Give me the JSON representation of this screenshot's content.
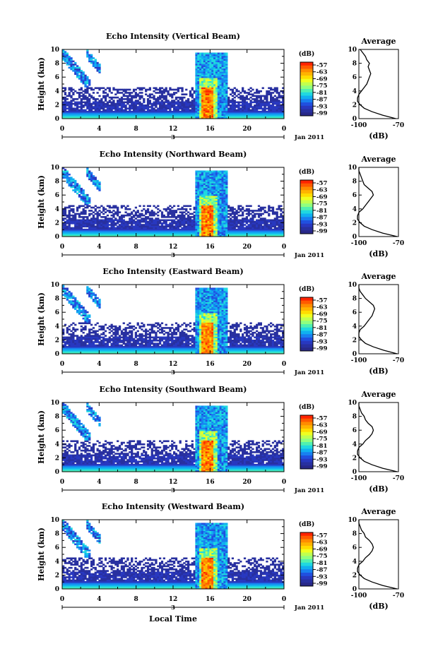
{
  "figure": {
    "xlabel": "Local Time",
    "date_label": "Jan 2011",
    "day_label": "3"
  },
  "colorbar": {
    "unit": "(dB)",
    "tick_labels": [
      "-57",
      "-63",
      "-69",
      "-75",
      "-81",
      "-87",
      "-93",
      "-99"
    ],
    "colors": [
      "#ff2400",
      "#ff5a00",
      "#ff8c00",
      "#ffb400",
      "#ffdc00",
      "#f0ff20",
      "#c0ff50",
      "#90ff80",
      "#50f0b0",
      "#20d8e0",
      "#10b0f0",
      "#1880f0",
      "#2050e0",
      "#2838c0",
      "#2830a0",
      "#282888"
    ]
  },
  "chart_data": [
    {
      "type": "heatmap",
      "title": "Echo Intensity (Vertical Beam)",
      "ylabel": "Height (km)",
      "x_ticks": [
        "0",
        "4",
        "8",
        "12",
        "16",
        "20",
        "0"
      ],
      "y_ticks": [
        "0",
        "2",
        "4",
        "6",
        "8",
        "10"
      ],
      "xlim": [
        0,
        24
      ],
      "ylim": [
        0,
        10
      ],
      "clim": [
        -99,
        -57
      ],
      "profile": {
        "title": "Average",
        "xlabel": "(dB)",
        "x_ticks": [
          "-100",
          "-70"
        ],
        "y_ticks": [
          "0",
          "2",
          "4",
          "6",
          "8",
          "10"
        ],
        "height": [
          0,
          0.5,
          1,
          1.5,
          2,
          2.5,
          3,
          3.5,
          4,
          4.5,
          5,
          5.5,
          6,
          6.5,
          7,
          7.5,
          8,
          8.5,
          9,
          9.5,
          10
        ],
        "value": [
          -72,
          -82,
          -90,
          -96,
          -99,
          -101,
          -101,
          -100,
          -98,
          -96,
          -94,
          -93,
          -92,
          -91,
          -92,
          -93,
          -92,
          -94,
          -95,
          -97,
          -99
        ]
      }
    },
    {
      "type": "heatmap",
      "title": "Echo Intensity (Northward Beam)",
      "ylabel": "Height (km)",
      "x_ticks": [
        "0",
        "4",
        "8",
        "12",
        "16",
        "20",
        "0"
      ],
      "y_ticks": [
        "0",
        "2",
        "4",
        "6",
        "8",
        "10"
      ],
      "xlim": [
        0,
        24
      ],
      "ylim": [
        0,
        10
      ],
      "clim": [
        -99,
        -57
      ],
      "profile": {
        "title": "Average",
        "xlabel": "(dB)",
        "x_ticks": [
          "-100",
          "-70"
        ],
        "y_ticks": [
          "0",
          "2",
          "4",
          "6",
          "8",
          "10"
        ],
        "height": [
          0,
          0.5,
          1,
          1.5,
          2,
          2.5,
          3,
          3.5,
          4,
          4.5,
          5,
          5.5,
          6,
          6.5,
          7,
          7.5,
          8,
          8.5,
          9,
          9.5,
          10
        ],
        "value": [
          -71,
          -82,
          -90,
          -96,
          -99,
          -101,
          -101,
          -100,
          -97,
          -95,
          -93,
          -91,
          -89,
          -90,
          -93,
          -96,
          -97,
          -98,
          -99,
          -100,
          -100
        ]
      }
    },
    {
      "type": "heatmap",
      "title": "Echo Intensity (Eastward Beam)",
      "ylabel": "Height (km)",
      "x_ticks": [
        "0",
        "4",
        "8",
        "12",
        "16",
        "20",
        "0"
      ],
      "y_ticks": [
        "0",
        "2",
        "4",
        "6",
        "8",
        "10"
      ],
      "xlim": [
        0,
        24
      ],
      "ylim": [
        0,
        10
      ],
      "clim": [
        -99,
        -57
      ],
      "profile": {
        "title": "Average",
        "xlabel": "(dB)",
        "x_ticks": [
          "-100",
          "-70"
        ],
        "y_ticks": [
          "0",
          "2",
          "4",
          "6",
          "8",
          "10"
        ],
        "height": [
          0,
          0.5,
          1,
          1.5,
          2,
          2.5,
          3,
          3.5,
          4,
          4.5,
          5,
          5.5,
          6,
          6.5,
          7,
          7.5,
          8,
          8.5,
          9,
          9.5,
          10
        ],
        "value": [
          -71,
          -81,
          -89,
          -95,
          -98,
          -100,
          -100,
          -99,
          -96,
          -94,
          -92,
          -90,
          -89,
          -88,
          -89,
          -92,
          -95,
          -97,
          -99,
          -100,
          -100
        ]
      }
    },
    {
      "type": "heatmap",
      "title": "Echo Intensity (Southward Beam)",
      "ylabel": "Height (km)",
      "x_ticks": [
        "0",
        "4",
        "8",
        "12",
        "16",
        "20",
        "0"
      ],
      "y_ticks": [
        "0",
        "2",
        "4",
        "6",
        "8",
        "10"
      ],
      "xlim": [
        0,
        24
      ],
      "ylim": [
        0,
        10
      ],
      "clim": [
        -99,
        -57
      ],
      "profile": {
        "title": "Average",
        "xlabel": "(dB)",
        "x_ticks": [
          "-100",
          "-70"
        ],
        "y_ticks": [
          "0",
          "2",
          "4",
          "6",
          "8",
          "10"
        ],
        "height": [
          0,
          0.5,
          1,
          1.5,
          2,
          2.5,
          3,
          3.5,
          4,
          4.5,
          5,
          5.5,
          6,
          6.5,
          7,
          7.5,
          8,
          8.5,
          9,
          9.5,
          10
        ],
        "value": [
          -71,
          -82,
          -90,
          -96,
          -99,
          -101,
          -101,
          -100,
          -97,
          -95,
          -92,
          -90,
          -89,
          -90,
          -93,
          -95,
          -96,
          -98,
          -99,
          -100,
          -100
        ]
      }
    },
    {
      "type": "heatmap",
      "title": "Echo Intensity (Westward Beam)",
      "ylabel": "Height (km)",
      "x_ticks": [
        "0",
        "4",
        "8",
        "12",
        "16",
        "20",
        "0"
      ],
      "y_ticks": [
        "0",
        "2",
        "4",
        "6",
        "8",
        "10"
      ],
      "xlim": [
        0,
        24
      ],
      "ylim": [
        0,
        10
      ],
      "clim": [
        -99,
        -57
      ],
      "profile": {
        "title": "Average",
        "xlabel": "(dB)",
        "x_ticks": [
          "-100",
          "-70"
        ],
        "y_ticks": [
          "0",
          "2",
          "4",
          "6",
          "8",
          "10"
        ],
        "height": [
          0,
          0.5,
          1,
          1.5,
          2,
          2.5,
          3,
          3.5,
          4,
          4.5,
          5,
          5.5,
          6,
          6.5,
          7,
          7.5,
          8,
          8.5,
          9,
          9.5,
          10
        ],
        "value": [
          -71,
          -82,
          -90,
          -96,
          -99,
          -101,
          -101,
          -100,
          -97,
          -95,
          -92,
          -90,
          -89,
          -90,
          -92,
          -95,
          -96,
          -98,
          -99,
          -100,
          -100
        ]
      }
    }
  ]
}
